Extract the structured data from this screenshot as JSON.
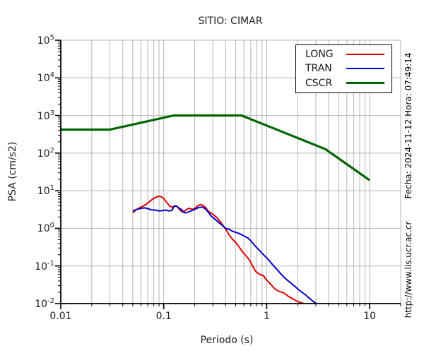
{
  "title": "SITIO: CIMAR",
  "axes": {
    "xlabel": "Periodo (s)",
    "ylabel": "PSA (cm/s2)",
    "x_tick_labels": [
      "0.01",
      "0.1",
      "1",
      "10"
    ],
    "x_tick_values": [
      0.01,
      0.1,
      1,
      10
    ],
    "y_tick_exponents": [
      5,
      4,
      3,
      2,
      1,
      0,
      -1,
      -2
    ]
  },
  "legend": {
    "entries": [
      {
        "label": "LONG",
        "color": "#dd0000",
        "thickness": 2
      },
      {
        "label": "TRAN",
        "color": "#0000cc",
        "thickness": 2
      },
      {
        "label": "CSCR",
        "color": "#006400",
        "thickness": 3
      }
    ]
  },
  "side_texts": {
    "fecha": "Fecha: 2024-11-12 Hora: 07:49:14",
    "url": "http://www.lis.ucr.ac.cr"
  },
  "chart_data": {
    "type": "line",
    "title": "SITIO: CIMAR",
    "xlabel": "Periodo (s)",
    "ylabel": "PSA (cm/s2)",
    "x_scale": "log",
    "y_scale": "log",
    "xlim": [
      0.01,
      20
    ],
    "ylim": [
      0.01,
      100000
    ],
    "grid": true,
    "legend_position": "upper right",
    "grid_color": "#b4b4b4",
    "series": [
      {
        "name": "LONG",
        "color": "#dd0000",
        "width": 2,
        "points": [
          [
            0.05,
            2.6
          ],
          [
            0.054,
            3.1
          ],
          [
            0.058,
            3.5
          ],
          [
            0.063,
            3.9
          ],
          [
            0.068,
            4.4
          ],
          [
            0.073,
            5.2
          ],
          [
            0.08,
            6.3
          ],
          [
            0.087,
            7.0
          ],
          [
            0.093,
            7.1
          ],
          [
            0.1,
            6.2
          ],
          [
            0.107,
            4.9
          ],
          [
            0.115,
            3.8
          ],
          [
            0.122,
            3.7
          ],
          [
            0.128,
            4.0
          ],
          [
            0.135,
            3.8
          ],
          [
            0.143,
            3.1
          ],
          [
            0.152,
            2.7
          ],
          [
            0.16,
            2.9
          ],
          [
            0.17,
            3.3
          ],
          [
            0.178,
            3.4
          ],
          [
            0.19,
            3.2
          ],
          [
            0.2,
            3.4
          ],
          [
            0.215,
            4.0
          ],
          [
            0.228,
            4.3
          ],
          [
            0.24,
            4.1
          ],
          [
            0.255,
            3.6
          ],
          [
            0.27,
            2.9
          ],
          [
            0.29,
            2.5
          ],
          [
            0.31,
            2.2
          ],
          [
            0.33,
            1.9
          ],
          [
            0.35,
            1.55
          ],
          [
            0.38,
            1.15
          ],
          [
            0.41,
            0.85
          ],
          [
            0.44,
            0.62
          ],
          [
            0.47,
            0.5
          ],
          [
            0.5,
            0.42
          ],
          [
            0.54,
            0.32
          ],
          [
            0.58,
            0.24
          ],
          [
            0.63,
            0.185
          ],
          [
            0.68,
            0.145
          ],
          [
            0.73,
            0.1
          ],
          [
            0.78,
            0.072
          ],
          [
            0.85,
            0.06
          ],
          [
            0.93,
            0.055
          ],
          [
            1.0,
            0.042
          ],
          [
            1.1,
            0.032
          ],
          [
            1.2,
            0.0245
          ],
          [
            1.32,
            0.021
          ],
          [
            1.45,
            0.0195
          ],
          [
            1.6,
            0.016
          ],
          [
            1.75,
            0.0138
          ],
          [
            1.95,
            0.0118
          ],
          [
            2.1,
            0.0108
          ],
          [
            2.3,
            0.01
          ]
        ]
      },
      {
        "name": "TRAN",
        "color": "#0000cc",
        "width": 2,
        "points": [
          [
            0.05,
            2.9
          ],
          [
            0.055,
            3.2
          ],
          [
            0.06,
            3.4
          ],
          [
            0.065,
            3.5
          ],
          [
            0.07,
            3.35
          ],
          [
            0.076,
            3.1
          ],
          [
            0.083,
            3.05
          ],
          [
            0.09,
            2.9
          ],
          [
            0.097,
            2.95
          ],
          [
            0.105,
            3.05
          ],
          [
            0.112,
            2.9
          ],
          [
            0.12,
            3.0
          ],
          [
            0.127,
            3.9
          ],
          [
            0.133,
            3.9
          ],
          [
            0.14,
            3.5
          ],
          [
            0.15,
            3.1
          ],
          [
            0.158,
            2.6
          ],
          [
            0.167,
            2.6
          ],
          [
            0.178,
            2.8
          ],
          [
            0.19,
            3.0
          ],
          [
            0.205,
            3.3
          ],
          [
            0.22,
            3.6
          ],
          [
            0.235,
            3.7
          ],
          [
            0.25,
            3.4
          ],
          [
            0.265,
            2.9
          ],
          [
            0.285,
            2.2
          ],
          [
            0.31,
            1.8
          ],
          [
            0.34,
            1.45
          ],
          [
            0.37,
            1.2
          ],
          [
            0.4,
            1.0
          ],
          [
            0.43,
            0.95
          ],
          [
            0.46,
            0.85
          ],
          [
            0.5,
            0.78
          ],
          [
            0.54,
            0.73
          ],
          [
            0.6,
            0.63
          ],
          [
            0.66,
            0.55
          ],
          [
            0.72,
            0.43
          ],
          [
            0.78,
            0.33
          ],
          [
            0.85,
            0.26
          ],
          [
            0.93,
            0.2
          ],
          [
            1.02,
            0.155
          ],
          [
            1.12,
            0.115
          ],
          [
            1.25,
            0.082
          ],
          [
            1.4,
            0.058
          ],
          [
            1.55,
            0.044
          ],
          [
            1.7,
            0.036
          ],
          [
            1.9,
            0.028
          ],
          [
            2.1,
            0.022
          ],
          [
            2.35,
            0.0175
          ],
          [
            2.6,
            0.0138
          ],
          [
            2.85,
            0.0112
          ],
          [
            3.05,
            0.01
          ]
        ]
      },
      {
        "name": "CSCR",
        "color": "#006400",
        "width": 3.2,
        "points": [
          [
            0.01,
            420
          ],
          [
            0.03,
            420
          ],
          [
            0.125,
            1000
          ],
          [
            0.57,
            1000
          ],
          [
            3.7,
            128
          ],
          [
            10,
            19
          ]
        ]
      }
    ]
  }
}
